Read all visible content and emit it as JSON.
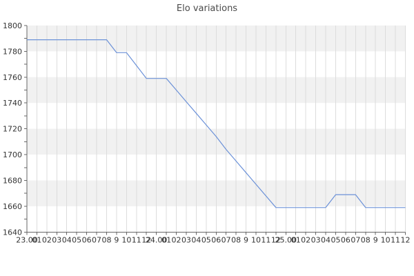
{
  "chart_data": {
    "type": "line",
    "title": "Elo variations",
    "xlabel": "",
    "ylabel": "",
    "ylim": [
      1640,
      1800
    ],
    "y_tick_step": 20,
    "y_minor_tick_step": 10,
    "legend": "none",
    "grid": "vertical-only",
    "plot_bands": "alternating horizontal bands, gray on top band (1780-1800), every 20 Elo",
    "x_categories": [
      "23.00",
      "01",
      "02",
      "03",
      "04",
      "05",
      "06",
      "07",
      "08",
      "9",
      "10",
      "11",
      "12",
      "24.00",
      "01",
      "02",
      "03",
      "04",
      "05",
      "06",
      "07",
      "08",
      "9",
      "10",
      "11",
      "12",
      "25.00",
      "01",
      "02",
      "03",
      "04",
      "05",
      "06",
      "07",
      "08",
      "9",
      "10",
      "11",
      "12"
    ],
    "series": [
      {
        "name": "Elo",
        "color": "#6b91d8",
        "values": [
          1789,
          1789,
          1789,
          1789,
          1789,
          1789,
          1789,
          1789,
          1789,
          1779,
          1779,
          1769,
          1759,
          1759,
          1759,
          1750,
          1741,
          1732,
          1723,
          1714,
          1704,
          1695,
          1686,
          1677,
          1668,
          1659,
          1659,
          1659,
          1659,
          1659,
          1659,
          1669,
          1669,
          1669,
          1659,
          1659,
          1659,
          1659,
          1659
        ]
      }
    ],
    "colors": {
      "band": "#f1f1f1",
      "gridline": "#dcdcdc",
      "axis": "#666666",
      "label": "#333333",
      "title": "#4a4a4a",
      "background": "#ffffff"
    }
  }
}
